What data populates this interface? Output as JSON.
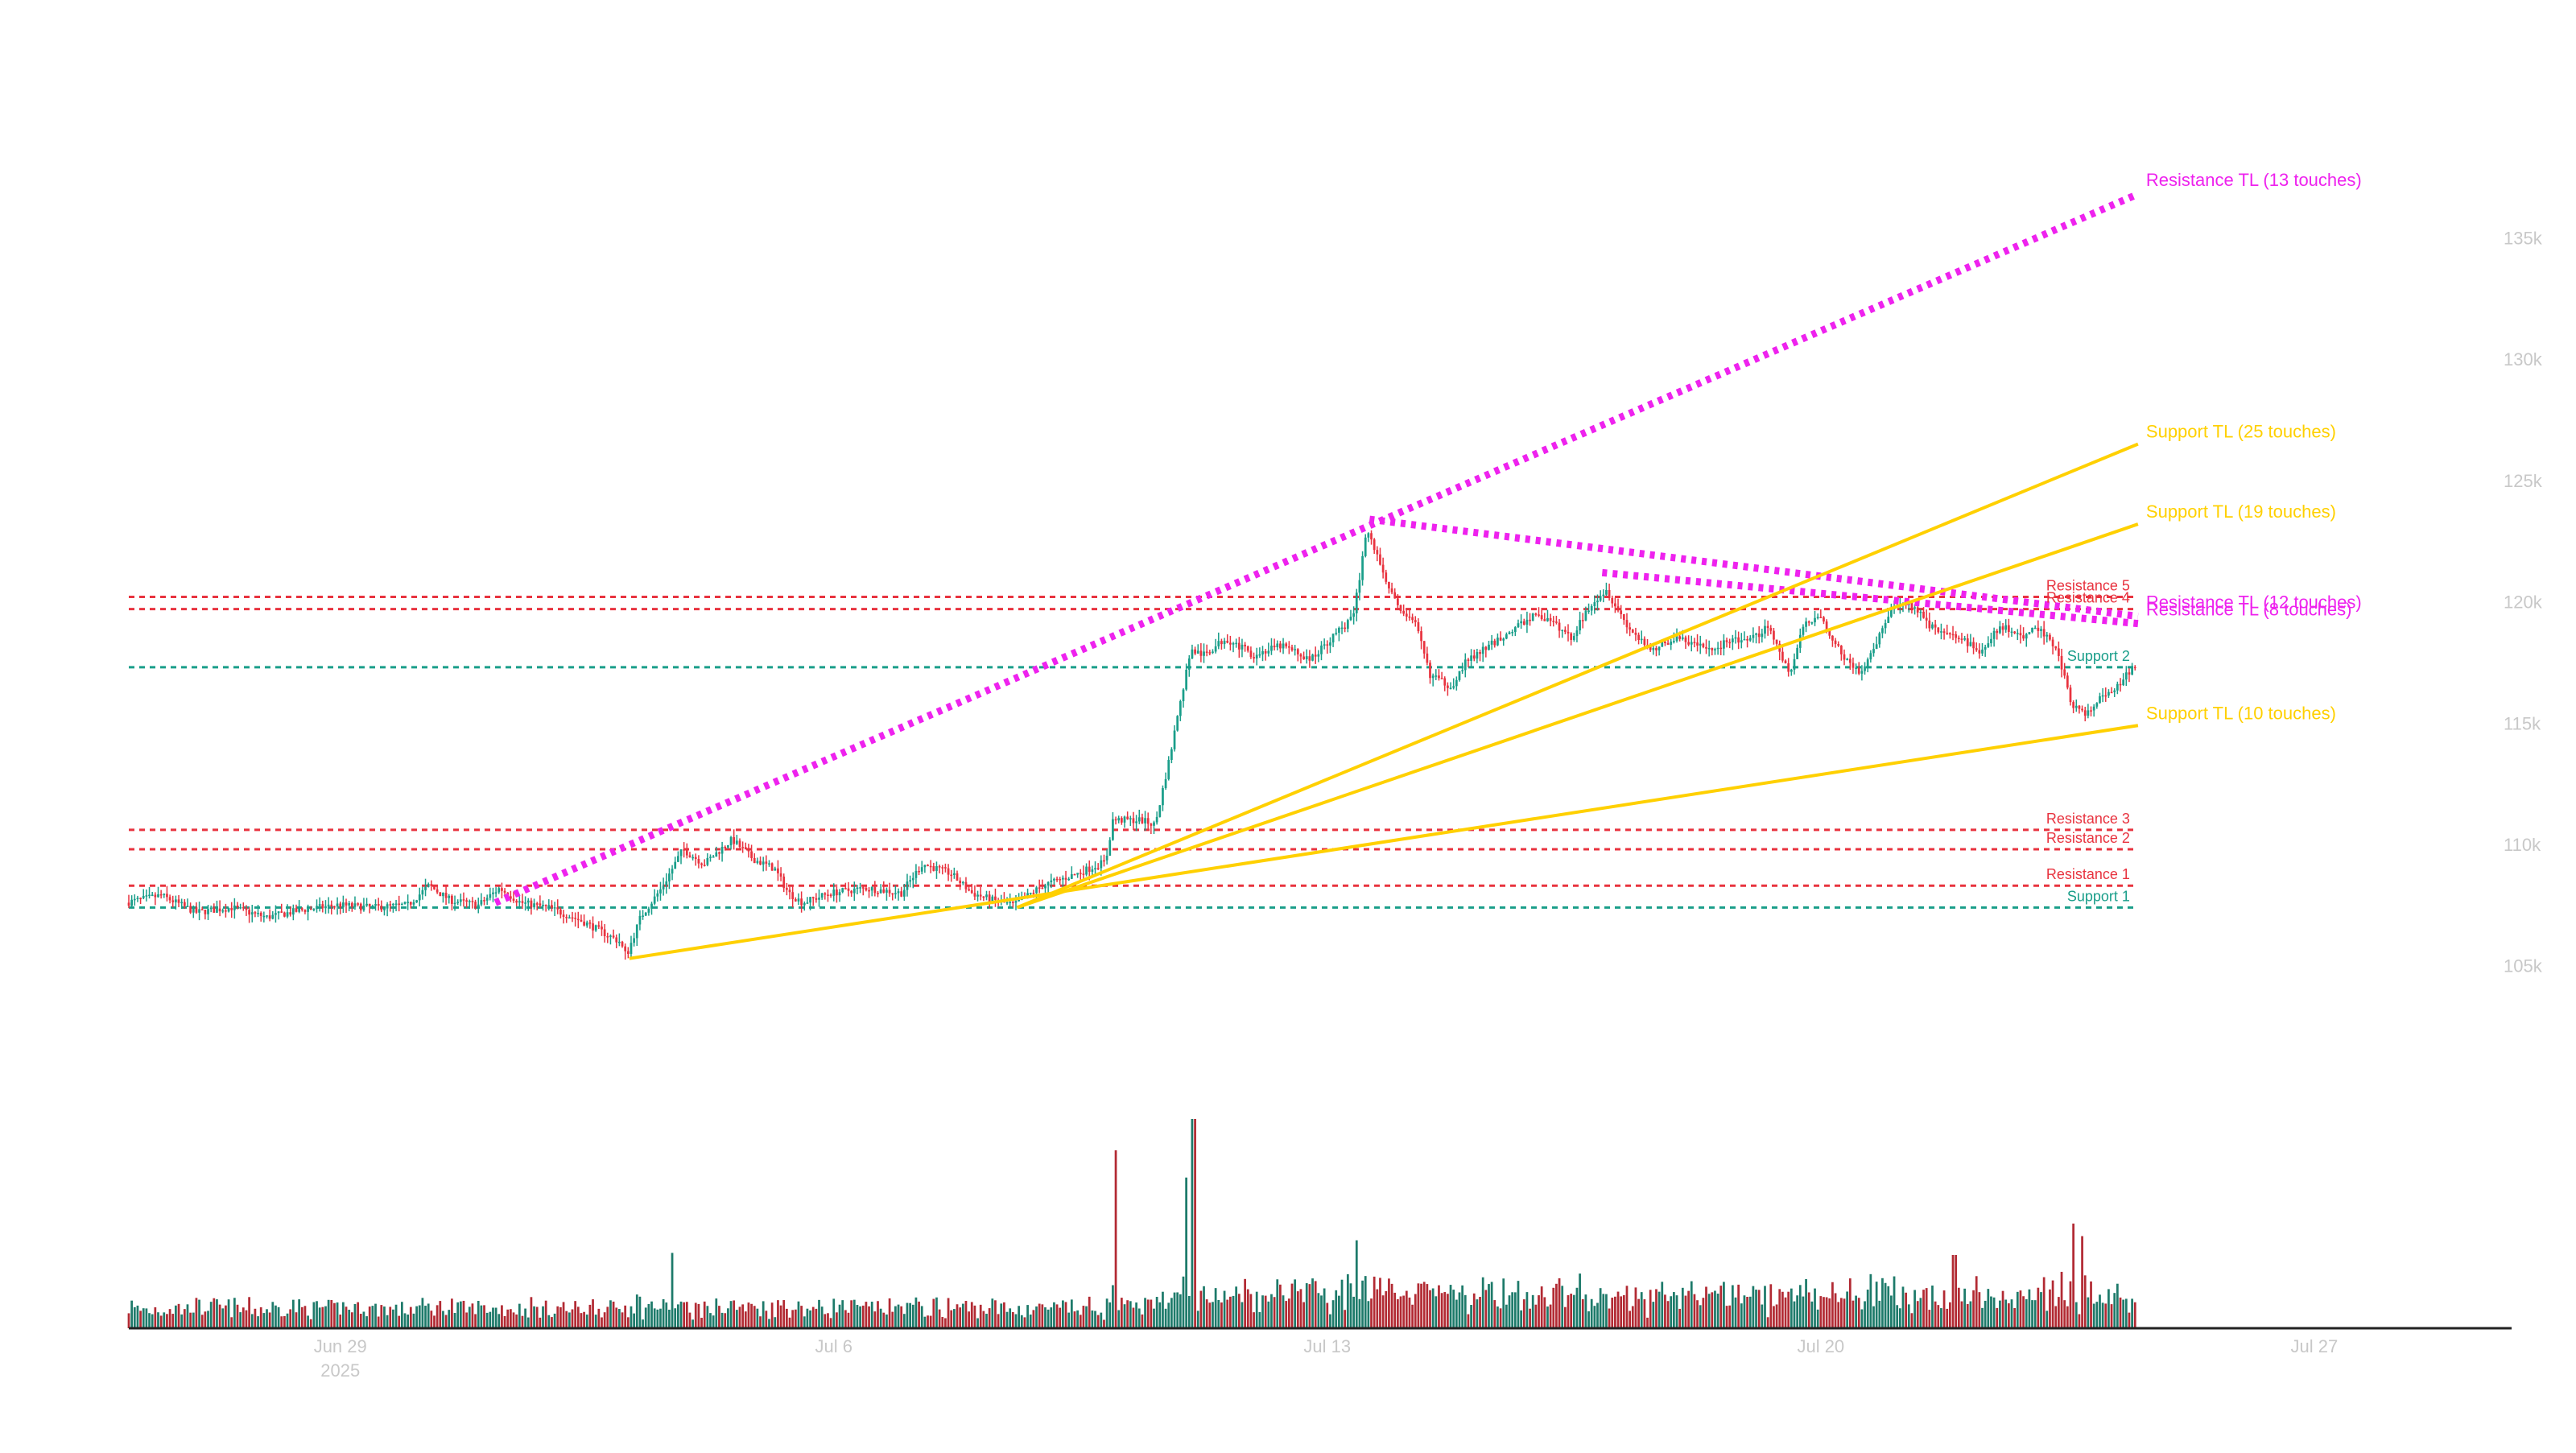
{
  "chart_data": {
    "type": "candlestick",
    "price_axis": {
      "ticks": [
        105000,
        110000,
        115000,
        120000,
        125000,
        130000,
        135000
      ],
      "tick_labels": [
        "105k",
        "110k",
        "115k",
        "120k",
        "125k",
        "130k",
        "135k"
      ],
      "range": [
        103000,
        137500
      ],
      "position": "right"
    },
    "time_axis": {
      "ticks": [
        "2025-06-29",
        "2025-07-06",
        "2025-07-13",
        "2025-07-20",
        "2025-07-27"
      ],
      "tick_labels": [
        "Jun 29",
        "Jul 6",
        "Jul 13",
        "Jul 20",
        "Jul 27"
      ],
      "year_label": "2025",
      "range_days": [
        -3.0,
        30.0
      ],
      "candle_interval": "1h"
    },
    "grid": false,
    "price_path": [
      [
        -3.0,
        107600
      ],
      [
        -2.5,
        107900
      ],
      [
        -2.0,
        107200
      ],
      [
        -1.5,
        107400
      ],
      [
        -1.0,
        107000
      ],
      [
        -0.5,
        107300
      ],
      [
        0.0,
        107500
      ],
      [
        0.5,
        107400
      ],
      [
        1.0,
        107500
      ],
      [
        1.3,
        108300
      ],
      [
        1.6,
        107700
      ],
      [
        2.0,
        107500
      ],
      [
        2.3,
        108200
      ],
      [
        2.6,
        107600
      ],
      [
        3.0,
        107400
      ],
      [
        3.5,
        106800
      ],
      [
        4.0,
        106000
      ],
      [
        4.1,
        105400
      ],
      [
        4.3,
        107000
      ],
      [
        4.6,
        108200
      ],
      [
        4.9,
        109800
      ],
      [
        5.2,
        109200
      ],
      [
        5.6,
        110200
      ],
      [
        5.9,
        109400
      ],
      [
        6.2,
        109000
      ],
      [
        6.4,
        108000
      ],
      [
        6.6,
        107600
      ],
      [
        7.0,
        108000
      ],
      [
        7.5,
        108200
      ],
      [
        8.0,
        108000
      ],
      [
        8.3,
        109200
      ],
      [
        8.7,
        108800
      ],
      [
        9.0,
        108000
      ],
      [
        9.3,
        107700
      ],
      [
        9.6,
        107500
      ],
      [
        10.0,
        108300
      ],
      [
        10.5,
        108800
      ],
      [
        10.9,
        109300
      ],
      [
        11.0,
        111000
      ],
      [
        11.4,
        111000
      ],
      [
        11.6,
        110800
      ],
      [
        11.8,
        113500
      ],
      [
        12.0,
        116500
      ],
      [
        12.1,
        118000
      ],
      [
        12.3,
        117800
      ],
      [
        12.6,
        118500
      ],
      [
        13.0,
        117800
      ],
      [
        13.4,
        118200
      ],
      [
        13.8,
        117600
      ],
      [
        14.2,
        118800
      ],
      [
        14.4,
        119300
      ],
      [
        14.5,
        121000
      ],
      [
        14.6,
        123000
      ],
      [
        14.8,
        121500
      ],
      [
        15.0,
        120000
      ],
      [
        15.3,
        119000
      ],
      [
        15.5,
        117000
      ],
      [
        15.8,
        116500
      ],
      [
        16.0,
        117500
      ],
      [
        16.5,
        118500
      ],
      [
        17.0,
        119500
      ],
      [
        17.3,
        119000
      ],
      [
        17.5,
        118500
      ],
      [
        17.8,
        120000
      ],
      [
        18.0,
        120500
      ],
      [
        18.3,
        119000
      ],
      [
        18.6,
        118000
      ],
      [
        19.0,
        118500
      ],
      [
        19.5,
        118000
      ],
      [
        19.8,
        118500
      ],
      [
        20.0,
        118300
      ],
      [
        20.3,
        119000
      ],
      [
        20.6,
        117000
      ],
      [
        20.8,
        119000
      ],
      [
        21.0,
        119500
      ],
      [
        21.3,
        118000
      ],
      [
        21.6,
        117000
      ],
      [
        21.8,
        118000
      ],
      [
        22.0,
        119500
      ],
      [
        22.3,
        120000
      ],
      [
        22.6,
        119000
      ],
      [
        23.0,
        118500
      ],
      [
        23.3,
        118000
      ],
      [
        23.6,
        119000
      ],
      [
        23.9,
        118500
      ],
      [
        24.1,
        119000
      ],
      [
        24.4,
        118000
      ],
      [
        24.6,
        115800
      ],
      [
        24.8,
        115300
      ],
      [
        25.0,
        116000
      ],
      [
        25.2,
        116300
      ],
      [
        25.5,
        117400
      ]
    ],
    "volume": {
      "spikes": [
        {
          "day": 4.7,
          "value": 0.36
        },
        {
          "day": 11.0,
          "value": 0.85
        },
        {
          "day": 12.0,
          "value": 0.72
        },
        {
          "day": 12.1,
          "value": 1.0
        },
        {
          "day": 14.4,
          "value": 0.42
        },
        {
          "day": 22.9,
          "value": 0.35
        },
        {
          "day": 24.6,
          "value": 0.5
        },
        {
          "day": 24.7,
          "value": 0.44
        }
      ]
    },
    "horizontal_levels": [
      {
        "label": "Resistance 1",
        "price": 108300,
        "color": "#e8333f"
      },
      {
        "label": "Support 1",
        "price": 107400,
        "color": "#1a9e8a"
      },
      {
        "label": "Resistance 2",
        "price": 109800,
        "color": "#e8333f"
      },
      {
        "label": "Resistance 3",
        "price": 110600,
        "color": "#e8333f"
      },
      {
        "label": "Support 2",
        "price": 117300,
        "color": "#1a9e8a"
      },
      {
        "label": "Resistance 4",
        "price": 119700,
        "color": "#e8333f"
      },
      {
        "label": "Resistance 5",
        "price": 120200,
        "color": "#e8333f"
      }
    ],
    "trendlines": [
      {
        "label": "Resistance TL (13 touches)",
        "color": "#ee22ee",
        "style": "dotted",
        "from": [
          2.2,
          107600
        ],
        "to": [
          25.5,
          136800
        ]
      },
      {
        "label": "Resistance TL (12 touches)",
        "color": "#ee22ee",
        "style": "dotted",
        "from": [
          14.6,
          123400
        ],
        "to": [
          25.5,
          119400
        ]
      },
      {
        "label": "Resistance TL (8 touches)",
        "color": "#ee22ee",
        "style": "dotted",
        "from": [
          17.9,
          121200
        ],
        "to": [
          25.5,
          119100
        ]
      },
      {
        "label": "Support TL (25 touches)",
        "color": "#ffd000",
        "style": "solid",
        "from": [
          9.6,
          107400
        ],
        "to": [
          25.5,
          126500
        ]
      },
      {
        "label": "Support TL (19 touches)",
        "color": "#ffd000",
        "style": "solid",
        "from": [
          9.6,
          107400
        ],
        "to": [
          25.5,
          123200
        ]
      },
      {
        "label": "Support TL (10 touches)",
        "color": "#ffd000",
        "style": "solid",
        "from": [
          4.1,
          105300
        ],
        "to": [
          25.5,
          114900
        ]
      }
    ],
    "colors": {
      "up": "#1a9e8a",
      "down": "#e8333f",
      "support_tl": "#ffd000",
      "resistance_tl": "#ee22ee",
      "axis_text": "#c8c8c8",
      "axis_line": "#222222"
    }
  }
}
